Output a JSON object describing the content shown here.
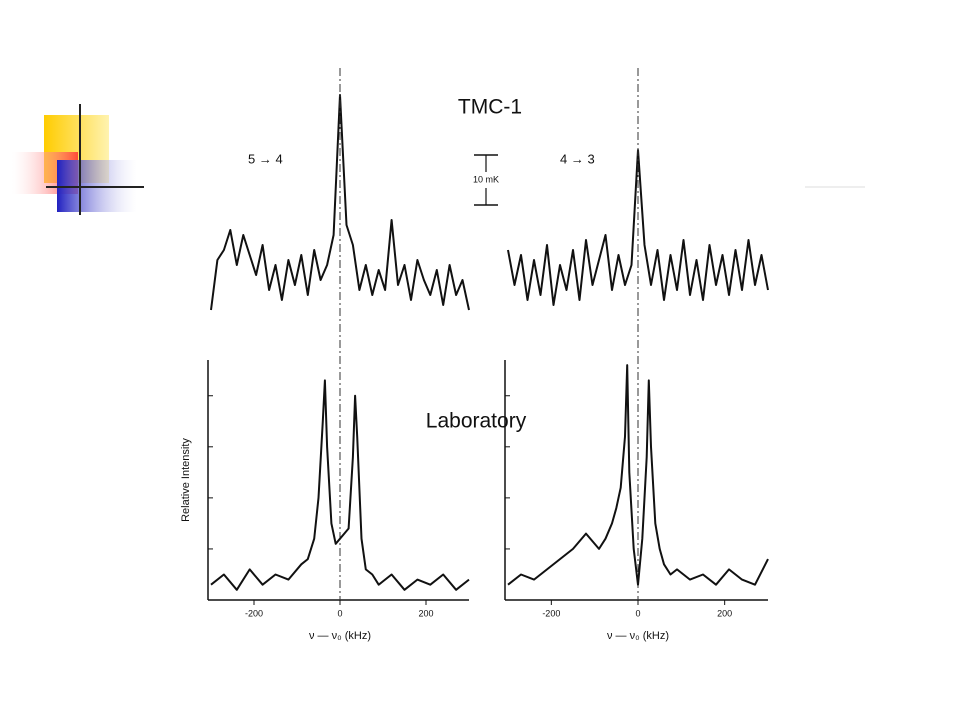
{
  "chart_data": [
    {
      "type": "line",
      "title": "5 → 4",
      "x": [
        -300,
        -285,
        -270,
        -255,
        -240,
        -225,
        -210,
        -195,
        -180,
        -165,
        -150,
        -135,
        -120,
        -105,
        -90,
        -75,
        -60,
        -45,
        -30,
        -15,
        0,
        15,
        30,
        45,
        60,
        75,
        90,
        105,
        120,
        135,
        150,
        165,
        180,
        195,
        210,
        225,
        240,
        255,
        270,
        285,
        300
      ],
      "series": [
        {
          "color": "#111111",
          "values": [
            -7,
            3,
            5,
            9,
            2,
            8,
            4,
            0,
            6,
            -3,
            2,
            -5,
            3,
            -2,
            4,
            -4,
            5,
            -1,
            2,
            8,
            36,
            10,
            6,
            -3,
            2,
            -4,
            1,
            -3,
            11,
            -2,
            2,
            -5,
            3,
            -1,
            -4,
            1,
            -6,
            2,
            -4,
            -1,
            -7
          ]
        }
      ],
      "xlim": [
        -300,
        300
      ],
      "ylim": [
        -12,
        40
      ]
    },
    {
      "type": "line",
      "title": "4 → 3",
      "x": [
        -300,
        -285,
        -270,
        -255,
        -240,
        -225,
        -210,
        -195,
        -180,
        -165,
        -150,
        -135,
        -120,
        -105,
        -90,
        -75,
        -60,
        -45,
        -30,
        -15,
        0,
        15,
        30,
        45,
        60,
        75,
        90,
        105,
        120,
        135,
        150,
        165,
        180,
        195,
        210,
        225,
        240,
        255,
        270,
        285,
        300
      ],
      "series": [
        {
          "color": "#111111",
          "values": [
            5,
            -2,
            4,
            -5,
            3,
            -4,
            6,
            -6,
            2,
            -3,
            5,
            -5,
            7,
            -2,
            3,
            8,
            -3,
            4,
            -2,
            2,
            25,
            6,
            -2,
            5,
            -5,
            4,
            -3,
            7,
            -4,
            3,
            -5,
            6,
            -2,
            4,
            -4,
            5,
            -3,
            7,
            -2,
            4,
            -3
          ]
        }
      ],
      "xlim": [
        -300,
        300
      ],
      "ylim": [
        -12,
        40
      ]
    },
    {
      "type": "line",
      "ylabel": "Relative Intensity",
      "xlabel": "ν — ν₀ (kHz)",
      "x": [
        -300,
        -270,
        -240,
        -210,
        -180,
        -150,
        -120,
        -90,
        -75,
        -60,
        -50,
        -40,
        -35,
        -30,
        -20,
        -10,
        0,
        10,
        20,
        30,
        35,
        40,
        50,
        60,
        75,
        90,
        120,
        150,
        180,
        210,
        240,
        270,
        300
      ],
      "series": [
        {
          "color": "#111111",
          "values": [
            0.3,
            0.5,
            0.2,
            0.6,
            0.3,
            0.5,
            0.4,
            0.7,
            0.8,
            1.2,
            2.0,
            3.5,
            4.3,
            3.0,
            1.5,
            1.1,
            1.2,
            1.3,
            1.4,
            2.8,
            4.0,
            3.2,
            1.2,
            0.6,
            0.5,
            0.3,
            0.5,
            0.2,
            0.4,
            0.3,
            0.5,
            0.2,
            0.4
          ]
        }
      ],
      "xlim": [
        -300,
        300
      ],
      "ylim": [
        0,
        4.7
      ],
      "xticks": [
        -200,
        0,
        200
      ],
      "yticks": [
        1,
        2,
        3,
        4
      ]
    },
    {
      "type": "line",
      "xlabel": "ν — ν₀ (kHz)",
      "x": [
        -300,
        -270,
        -240,
        -210,
        -180,
        -150,
        -120,
        -90,
        -75,
        -60,
        -50,
        -40,
        -30,
        -25,
        -20,
        -10,
        0,
        10,
        20,
        25,
        30,
        40,
        50,
        60,
        75,
        90,
        120,
        150,
        180,
        210,
        240,
        270,
        300
      ],
      "series": [
        {
          "color": "#111111",
          "values": [
            0.3,
            0.5,
            0.4,
            0.6,
            0.8,
            1.0,
            1.3,
            1.0,
            1.2,
            1.5,
            1.8,
            2.2,
            3.2,
            4.6,
            2.5,
            1.0,
            0.3,
            1.2,
            2.8,
            4.3,
            3.0,
            1.5,
            1.0,
            0.7,
            0.5,
            0.6,
            0.4,
            0.5,
            0.3,
            0.6,
            0.4,
            0.3,
            0.8
          ]
        }
      ],
      "xlim": [
        -300,
        300
      ],
      "ylim": [
        0,
        4.7
      ],
      "xticks": [
        -200,
        0,
        200
      ],
      "yticks": [
        1,
        2,
        3,
        4
      ]
    }
  ],
  "figure_labels": {
    "top_title": "TMC-1",
    "bottom_title": "Laboratory",
    "scale_bar": {
      "value": 10,
      "label": "10 mK"
    }
  }
}
